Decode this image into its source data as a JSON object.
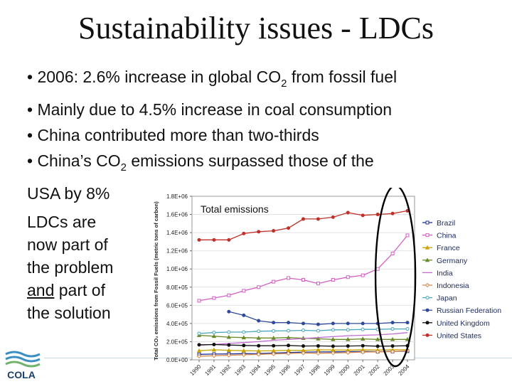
{
  "slide": {
    "title": "Sustainability issues - LDCs",
    "bullets": [
      {
        "pre": "• 2006: 2.6% increase in global CO",
        "sub": "2",
        "post": " from fossil fuel"
      },
      {
        "pre": "• Mainly due to 4.5% increase in coal consumption",
        "sub": "",
        "post": ""
      },
      {
        "pre": "• China contributed more than two-thirds",
        "sub": "",
        "post": ""
      },
      {
        "pre": "• China’s CO",
        "sub": "2",
        "post": " emissions surpassed those of the"
      },
      {
        "pre": "USA by 8%",
        "sub": "",
        "post": ""
      }
    ],
    "side_lines": [
      "LDCs are",
      "now part of",
      "the problem"
    ],
    "side_and": "and",
    "side_rest": " part of",
    "side_last": "the solution",
    "logo_text": "COLA"
  },
  "chart_data": {
    "type": "line",
    "title": "Total emissions",
    "ylabel": "Total CO₂ emissions from Fossil Fuels (metric tons of carbon)",
    "xlabel": "",
    "ylim": [
      0,
      1800000
    ],
    "yticks": [
      "0.0E+00",
      "2.0E+05",
      "4.0E+05",
      "6.0E+05",
      "8.0E+05",
      "1.0E+06",
      "1.2E+06",
      "1.4E+06",
      "1.6E+06",
      "1.8E+06"
    ],
    "x": [
      1990,
      1991,
      1992,
      1993,
      1994,
      1995,
      1996,
      1997,
      1998,
      1999,
      2000,
      2001,
      2002,
      2003,
      2004
    ],
    "highlight_ellipse": true,
    "series": [
      {
        "name": "Brazil",
        "color": "#1f2f8f",
        "marker": "square",
        "values": [
          60000,
          63000,
          65000,
          68000,
          70000,
          75000,
          80000,
          85000,
          87000,
          88000,
          90000,
          92000,
          90000,
          92000,
          95000
        ]
      },
      {
        "name": "China",
        "color": "#d35fc5",
        "marker": "square",
        "values": [
          650000,
          680000,
          710000,
          760000,
          800000,
          860000,
          900000,
          880000,
          840000,
          880000,
          910000,
          930000,
          1000000,
          1170000,
          1370000
        ]
      },
      {
        "name": "France",
        "color": "#c8a400",
        "marker": "triangle",
        "values": [
          100000,
          110000,
          105000,
          100000,
          98000,
          100000,
          105000,
          103000,
          110000,
          108000,
          107000,
          110000,
          108000,
          110000,
          110000
        ]
      },
      {
        "name": "Germany",
        "color": "#6a8a2a",
        "marker": "triangle",
        "values": [
          270000,
          260000,
          250000,
          245000,
          240000,
          240000,
          245000,
          238000,
          232000,
          225000,
          225000,
          230000,
          225000,
          225000,
          225000
        ]
      },
      {
        "name": "India",
        "color": "#c06bd1",
        "marker": "none",
        "values": [
          160000,
          170000,
          180000,
          190000,
          200000,
          215000,
          225000,
          235000,
          245000,
          255000,
          265000,
          270000,
          275000,
          285000,
          300000
        ]
      },
      {
        "name": "Indonesia",
        "color": "#d98a4a",
        "marker": "diamond",
        "values": [
          40000,
          45000,
          50000,
          55000,
          60000,
          65000,
          70000,
          75000,
          72000,
          75000,
          80000,
          85000,
          88000,
          90000,
          100000
        ]
      },
      {
        "name": "Japan",
        "color": "#4aa7c0",
        "marker": "circle",
        "values": [
          290000,
          300000,
          305000,
          305000,
          315000,
          318000,
          320000,
          325000,
          320000,
          330000,
          330000,
          335000,
          335000,
          340000,
          340000
        ]
      },
      {
        "name": "Russian Federation",
        "color": "#2f4a9a",
        "marker": "circle",
        "values": [
          null,
          null,
          530000,
          490000,
          430000,
          410000,
          410000,
          400000,
          390000,
          400000,
          400000,
          400000,
          400000,
          410000,
          410000
        ]
      },
      {
        "name": "United Kingdom",
        "color": "#111111",
        "marker": "circle",
        "values": [
          165000,
          168000,
          163000,
          158000,
          155000,
          155000,
          158000,
          152000,
          153000,
          150000,
          152000,
          155000,
          150000,
          152000,
          155000
        ]
      },
      {
        "name": "United States",
        "color": "#c0302a",
        "marker": "circle",
        "values": [
          1320000,
          1320000,
          1320000,
          1390000,
          1410000,
          1420000,
          1450000,
          1550000,
          1550000,
          1570000,
          1620000,
          1590000,
          1600000,
          1610000,
          1640000
        ]
      }
    ]
  }
}
